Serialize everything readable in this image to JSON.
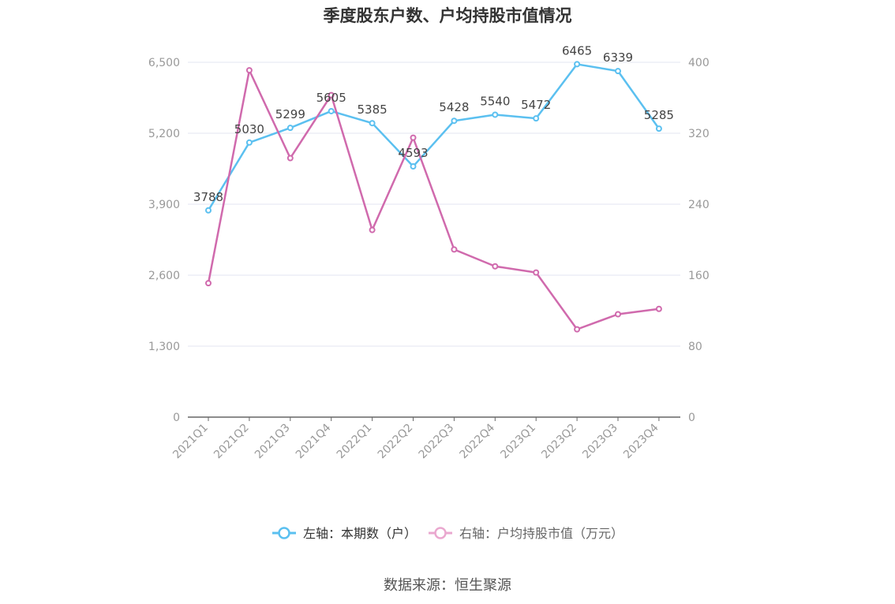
{
  "chart_data": {
    "type": "line",
    "title": "季度股东户数、户均持股市值情况",
    "categories": [
      "2021Q1",
      "2021Q2",
      "2021Q3",
      "2021Q4",
      "2022Q1",
      "2022Q2",
      "2022Q3",
      "2022Q4",
      "2023Q1",
      "2023Q2",
      "2023Q3",
      "2023Q4"
    ],
    "left_axis": {
      "ylim": [
        0,
        6500
      ],
      "ticks": [
        0,
        1300,
        2600,
        3900,
        5200,
        6500
      ],
      "tick_labels": [
        "0",
        "1,300",
        "2,600",
        "3,900",
        "5,200",
        "6,500"
      ]
    },
    "right_axis": {
      "ylim": [
        0,
        400
      ],
      "ticks": [
        0,
        80,
        160,
        240,
        320,
        400
      ],
      "tick_labels": [
        "0",
        "80",
        "160",
        "240",
        "320",
        "400"
      ]
    },
    "series": [
      {
        "name": "左轴：本期数（户）",
        "axis": "left",
        "color": "#5bc0f0",
        "values": [
          3788,
          5030,
          5299,
          5605,
          5385,
          4593,
          5428,
          5540,
          5472,
          6465,
          6339,
          5285
        ],
        "data_labels": [
          "3788",
          "5030",
          "5299",
          "5605",
          "5385",
          "4593",
          "5428",
          "5540",
          "5472",
          "6465",
          "6339",
          "5285"
        ]
      },
      {
        "name": "右轴：户均持股市值（万元）",
        "axis": "right",
        "color": "#d06aad",
        "values": [
          151,
          391,
          292,
          363,
          211,
          315,
          189,
          170,
          163,
          99,
          116,
          122
        ]
      }
    ],
    "grid": true,
    "legend_position": "bottom-center",
    "source": "数据来源：恒生聚源"
  }
}
